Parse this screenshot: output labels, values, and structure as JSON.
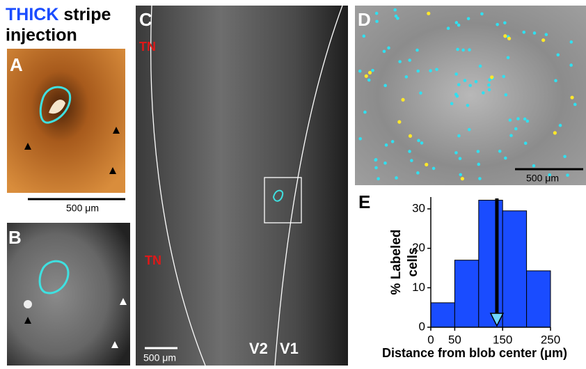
{
  "header": {
    "highlight": "THICK",
    "rest": "stripe",
    "line2": "injection"
  },
  "panels": {
    "A": {
      "label": "A",
      "scale_bar": "500 μm"
    },
    "B": {
      "label": "B"
    },
    "C": {
      "label": "C",
      "tn_top": "TN",
      "tn_bottom": "TN",
      "v2": "V2",
      "v1": "V1",
      "scale_bar": "500 μm"
    },
    "D": {
      "label": "D",
      "scale_bar": "500 μm"
    },
    "E": {
      "label": "E"
    }
  },
  "chart_data": {
    "type": "histogram",
    "bins": [
      0,
      50,
      100,
      150,
      200,
      250
    ],
    "values": [
      6.2,
      17,
      32.2,
      29.5,
      14.3
    ],
    "color": "#1a4cff",
    "xlim": [
      0,
      250
    ],
    "ylim": [
      0,
      33
    ],
    "xticks": [
      0,
      50,
      150,
      250
    ],
    "yticks": [
      0,
      10,
      20,
      30
    ],
    "ylabel": [
      "% Labeled",
      "cells"
    ],
    "xlabel": "Distance from blob center (μm)",
    "arrow_x": 138
  }
}
